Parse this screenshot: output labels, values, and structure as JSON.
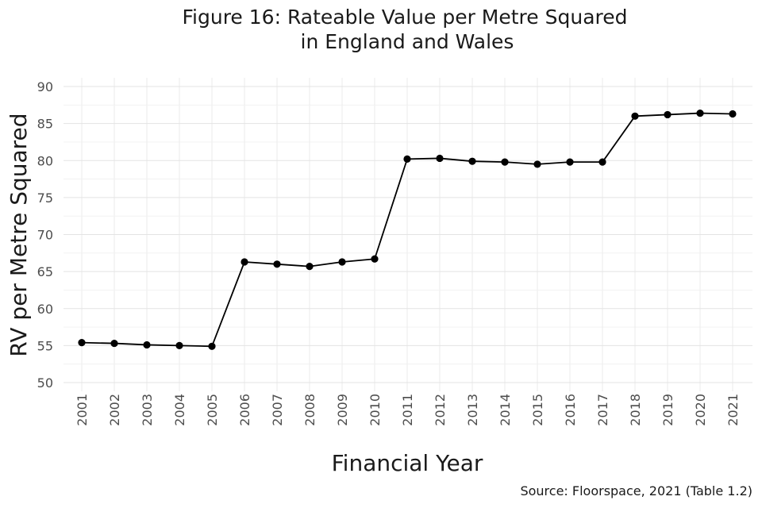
{
  "chart_data": {
    "type": "line",
    "title_line1": "Figure 16: Rateable Value per Metre Squared",
    "title_line2": "in England and Wales",
    "xlabel": "Financial Year",
    "ylabel": "RV per Metre Squared",
    "source": "Source: Floorspace, 2021 (Table 1.2)",
    "ylim": [
      50,
      90
    ],
    "yticks": [
      50,
      55,
      60,
      65,
      70,
      75,
      80,
      85,
      90
    ],
    "categories": [
      "2001",
      "2002",
      "2003",
      "2004",
      "2005",
      "2006",
      "2007",
      "2008",
      "2009",
      "2010",
      "2011",
      "2012",
      "2013",
      "2014",
      "2015",
      "2016",
      "2017",
      "2018",
      "2019",
      "2020",
      "2021"
    ],
    "series": [
      {
        "name": "RV per Metre Squared",
        "values": [
          55.4,
          55.3,
          55.1,
          55.0,
          54.9,
          66.3,
          66.0,
          65.7,
          66.3,
          66.7,
          80.2,
          80.3,
          79.9,
          79.8,
          79.5,
          79.8,
          79.8,
          86.0,
          86.2,
          86.4,
          86.3
        ]
      }
    ],
    "grid": true,
    "legend": "none",
    "line_color": "#000000",
    "point_color": "#000000"
  }
}
